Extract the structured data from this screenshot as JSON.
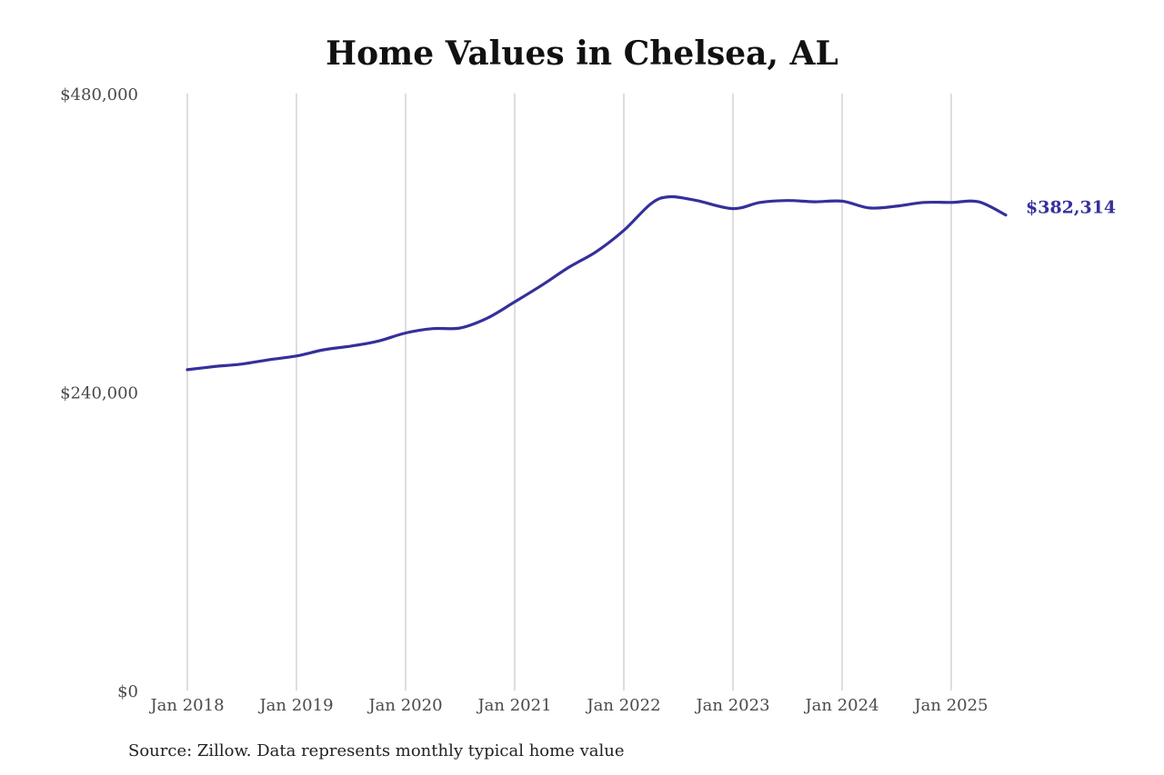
{
  "chart_data": {
    "type": "line",
    "title": "Home Values in Chelsea, AL",
    "source": "Source: Zillow. Data represents monthly typical home value",
    "xlabel": "",
    "ylabel": "",
    "x_ticks": [
      "Jan 2018",
      "Jan 2019",
      "Jan 2020",
      "Jan 2021",
      "Jan 2022",
      "Jan 2023",
      "Jan 2024",
      "Jan 2025"
    ],
    "y_ticks": [
      "$0",
      "$240,000",
      "$480,000"
    ],
    "ylim": [
      0,
      480000
    ],
    "xlim": [
      "2018-01",
      "2025-07"
    ],
    "grid": "vertical",
    "line_color": "#35309a",
    "end_label": "$382,314",
    "series": [
      {
        "x": [
          "2018-01",
          "2018-04",
          "2018-07",
          "2018-10",
          "2019-01",
          "2019-04",
          "2019-07",
          "2019-10",
          "2020-01",
          "2020-04",
          "2020-07",
          "2020-10",
          "2021-01",
          "2021-04",
          "2021-07",
          "2021-10",
          "2022-01",
          "2022-04",
          "2022-06",
          "2022-09",
          "2023-01",
          "2023-04",
          "2023-07",
          "2023-10",
          "2024-01",
          "2024-04",
          "2024-07",
          "2024-10",
          "2025-01",
          "2025-04",
          "2025-07"
        ],
        "y": [
          258000,
          260500,
          262500,
          266000,
          269000,
          274000,
          277000,
          281000,
          287500,
          291000,
          291500,
          299500,
          312500,
          326000,
          340500,
          353000,
          370000,
          391500,
          397000,
          394000,
          387500,
          392500,
          394000,
          393000,
          393500,
          388000,
          389500,
          392500,
          392500,
          393000,
          382314
        ]
      }
    ]
  }
}
